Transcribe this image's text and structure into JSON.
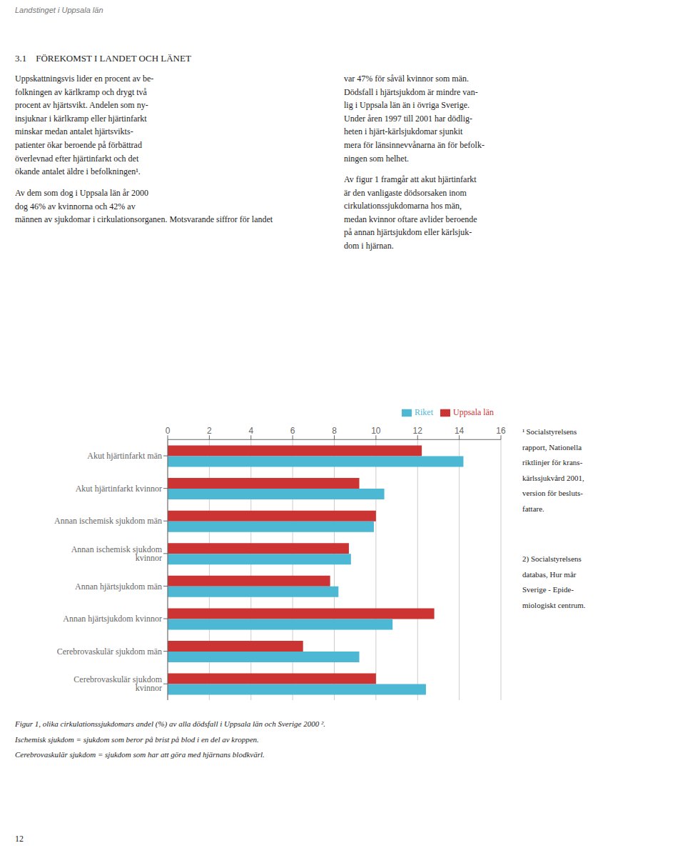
{
  "chart_data": {
    "type": "bar",
    "orientation": "horizontal",
    "title": "3.1 FÖREKOMST I LANDET OCH LÄNET",
    "subtitle": "Landstinget i Uppsala län",
    "categories": [
      "Akut hjärtinfarkt män",
      "Akut hjärtinfarkt kvinnor",
      "Annan ischemisk sjukdom män",
      "Annan ischemisk sjukdom kvinnor",
      "Annan hjärtsjukdom män",
      "Annan hjärtsjukdom kvinnor",
      "Cerebrovaskulär sjukdom män",
      "Cerebrovaskulär sjukdom kvinnor"
    ],
    "series": [
      {
        "name": "Uppsala län",
        "color": "#cc3333",
        "values": [
          12.2,
          9.2,
          10.0,
          8.7,
          7.8,
          12.8,
          6.5,
          10.0
        ]
      },
      {
        "name": "Riket",
        "color": "#4db8d4",
        "values": [
          14.2,
          10.4,
          9.9,
          8.8,
          8.2,
          10.8,
          9.2,
          12.4
        ]
      }
    ],
    "xlim": [
      0,
      16
    ],
    "xticks": [
      0,
      2,
      4,
      6,
      8,
      10,
      12,
      14,
      16
    ],
    "grid": true,
    "legend": "upper right",
    "annotations": [
      [
        "Uppskattningsvis lider en procent av be-",
        "folkningen av kärlkramp och drygt två",
        "procent av hjärtsvikt. Andelen som ny-",
        "insjuknar i kärlkramp eller hjärtinfarkt",
        "minskar medan antalet hjärtsvikts-",
        "patienter ökar beroende på förbättrad",
        "överlevnad efter hjärtinfarkt och det",
        "ökande antalet äldre i befolkningen¹."
      ],
      [
        "Av dem som dog i Uppsala län år 2000",
        "dog 46% av kvinnorna och 42% av",
        "männen av sjukdomar i cirkulationsorganen. Motsvarande siffror för landet"
      ],
      [
        "var 47% för såväl kvinnor som män.",
        "Dödsfall i hjärtsjukdom är mindre van-",
        "lig i Uppsala län än i övriga Sverige.",
        "Under åren 1997 till 2001 har dödlig-",
        "heten i hjärt-kärlsjukdomar sjunkit",
        "mera för länsinnevvånarna än för befolk-",
        "ningen som helhet."
      ],
      [
        "Av figur 1 framgår att akut hjärtinfarkt",
        "är den vanligaste dödsorsaken inom",
        "cirkulationssjukdomarna hos män,",
        "medan kvinnor oftare avlider beroende",
        "på annan hjärtsjukdom eller kärlsjuk-",
        "dom i hjärnan."
      ],
      [
        "Figur 1, olika cirkulationssjukdomars andel (%) av alla dödsfall i Uppsala län och Sverige 2000 ².",
        "Ischemisk sjukdom = sjukdom som beror på brist på blod i en del av kroppen.",
        "Cerebrovaskulär sjukdom = sjukdom som har att göra med hjärnans blodkvärl."
      ],
      [
        "¹ Socialstyrelsens",
        "rapport, Nationella",
        "riktlinjer för krans-",
        "kärlssjukvård 2001,",
        "version för besluts-",
        "fattare."
      ],
      [
        "2) Socialstyrelsens",
        "databas, Hur mår",
        "Sverige - Epide-",
        "miologiskt centrum."
      ],
      [
        "12"
      ]
    ]
  }
}
